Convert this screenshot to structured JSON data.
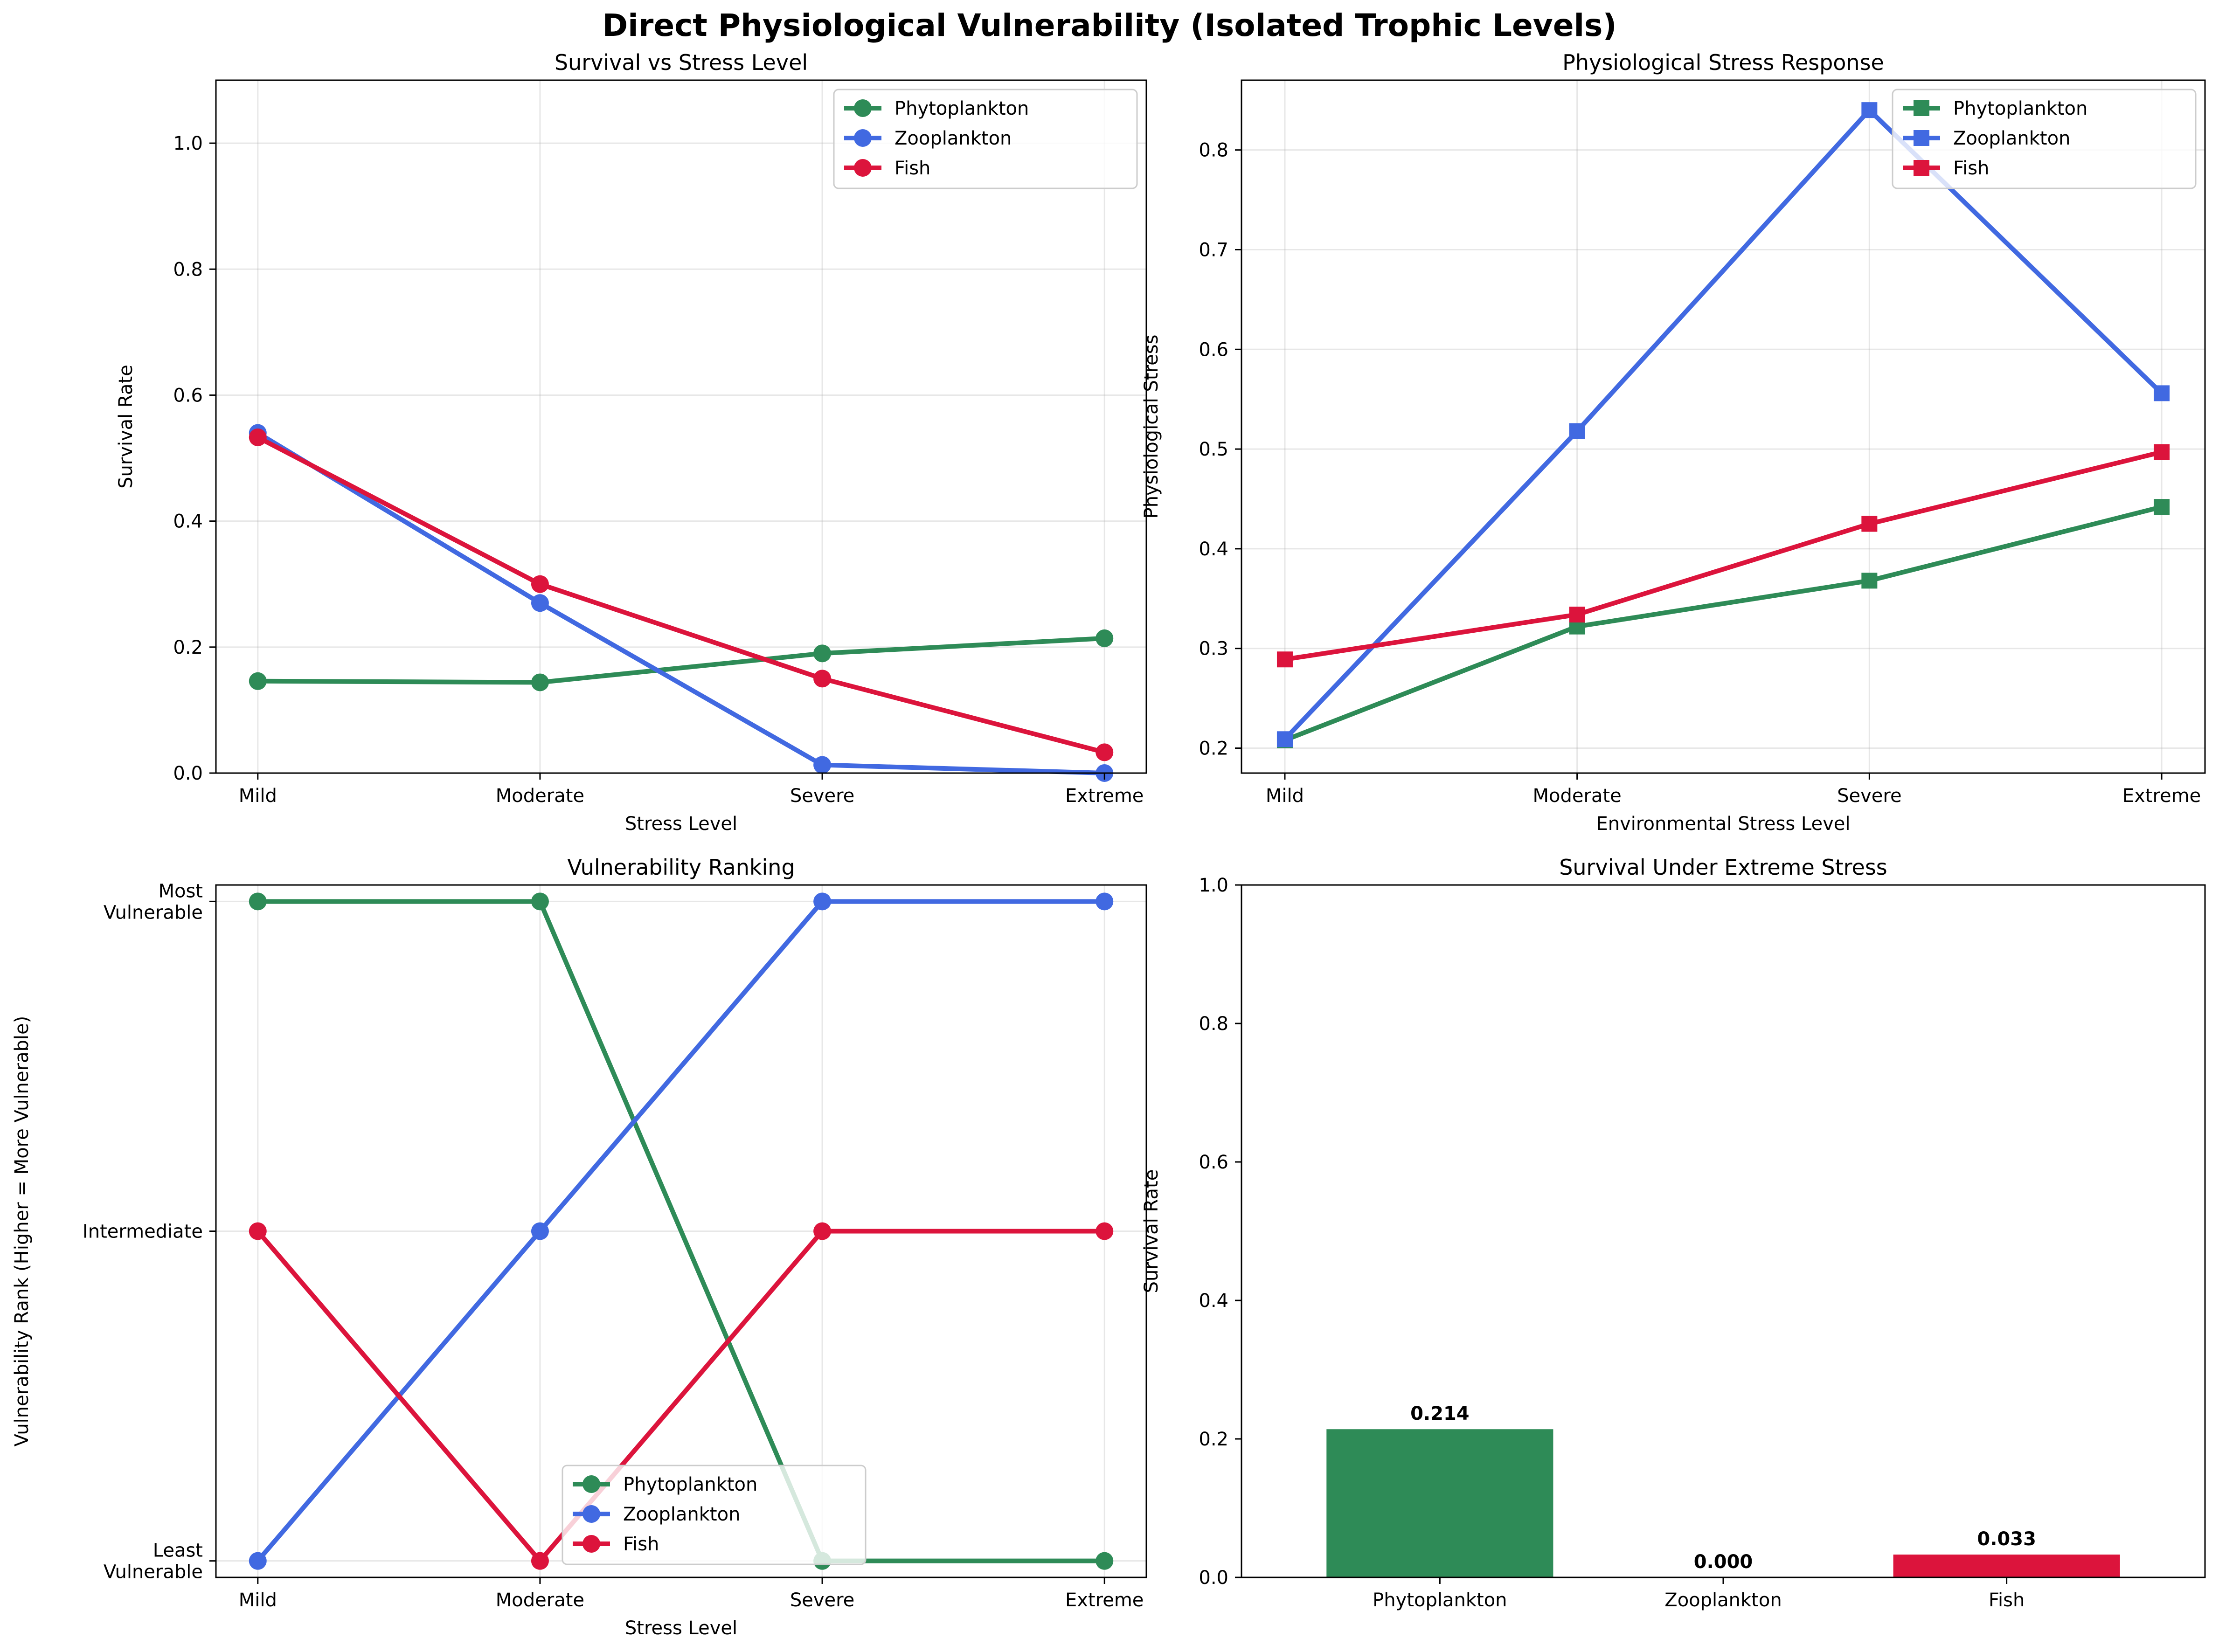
{
  "title": "Direct Physiological Vulnerability (Isolated Trophic Levels)",
  "colors": {
    "Phytoplankton": "#2e8b57",
    "Zooplankton": "#4169e1",
    "Fish": "#dc143c"
  },
  "chart_data": [
    {
      "type": "line",
      "title": "Survival vs Stress Level",
      "xlabel": "Stress Level",
      "ylabel": "Survival Rate",
      "categories": [
        "Mild",
        "Moderate",
        "Severe",
        "Extreme"
      ],
      "ylim": [
        0,
        1.1
      ],
      "yticks": [
        0.0,
        0.2,
        0.4,
        0.6,
        0.8,
        1.0
      ],
      "ytick_labels": [
        "0.0",
        "0.2",
        "0.4",
        "0.6",
        "0.8",
        "1.0"
      ],
      "marker": "circle",
      "grid": true,
      "legend": "upper right",
      "series": [
        {
          "name": "Phytoplankton",
          "values": [
            0.146,
            0.144,
            0.19,
            0.214
          ]
        },
        {
          "name": "Zooplankton",
          "values": [
            0.54,
            0.27,
            0.013,
            0.0
          ]
        },
        {
          "name": "Fish",
          "values": [
            0.533,
            0.3,
            0.15,
            0.033
          ]
        }
      ]
    },
    {
      "type": "line",
      "title": "Physiological Stress Response",
      "xlabel": "Environmental Stress Level",
      "ylabel": "Physiological Stress",
      "categories": [
        "Mild",
        "Moderate",
        "Severe",
        "Extreme"
      ],
      "ylim": [
        0.175,
        0.87
      ],
      "yticks": [
        0.2,
        0.3,
        0.4,
        0.5,
        0.6,
        0.7,
        0.8
      ],
      "ytick_labels": [
        "0.2",
        "0.3",
        "0.4",
        "0.5",
        "0.6",
        "0.7",
        "0.8"
      ],
      "marker": "square",
      "grid": true,
      "legend": "upper right",
      "series": [
        {
          "name": "Phytoplankton",
          "values": [
            0.208,
            0.322,
            0.368,
            0.442
          ]
        },
        {
          "name": "Zooplankton",
          "values": [
            0.209,
            0.518,
            0.84,
            0.556
          ]
        },
        {
          "name": "Fish",
          "values": [
            0.289,
            0.334,
            0.425,
            0.497
          ]
        }
      ]
    },
    {
      "type": "line",
      "title": "Vulnerability Ranking",
      "xlabel": "Stress Level",
      "ylabel": "Vulnerability Rank (Higher = More Vulnerable)",
      "categories": [
        "Mild",
        "Moderate",
        "Severe",
        "Extreme"
      ],
      "ylim": [
        0.95,
        3.05
      ],
      "yticks": [
        1,
        2,
        3
      ],
      "ytick_labels": [
        [
          "Least",
          "Vulnerable"
        ],
        [
          "Intermediate"
        ],
        [
          "Most",
          "Vulnerable"
        ]
      ],
      "marker": "circle",
      "grid": true,
      "legend": "lower center",
      "series": [
        {
          "name": "Phytoplankton",
          "values": [
            3,
            3,
            1,
            1
          ]
        },
        {
          "name": "Zooplankton",
          "values": [
            1,
            2,
            3,
            3
          ]
        },
        {
          "name": "Fish",
          "values": [
            2,
            1,
            2,
            2
          ]
        }
      ]
    },
    {
      "type": "bar",
      "title": "Survival Under Extreme Stress",
      "xlabel": "",
      "ylabel": "Survival Rate",
      "categories": [
        "Phytoplankton",
        "Zooplankton",
        "Fish"
      ],
      "values": [
        0.214,
        0.0,
        0.033
      ],
      "value_labels": [
        "0.214",
        "0.000",
        "0.033"
      ],
      "ylim": [
        0,
        1.0
      ],
      "yticks": [
        0.0,
        0.2,
        0.4,
        0.6,
        0.8,
        1.0
      ],
      "ytick_labels": [
        "0.0",
        "0.2",
        "0.4",
        "0.6",
        "0.8",
        "1.0"
      ],
      "grid": false
    }
  ]
}
